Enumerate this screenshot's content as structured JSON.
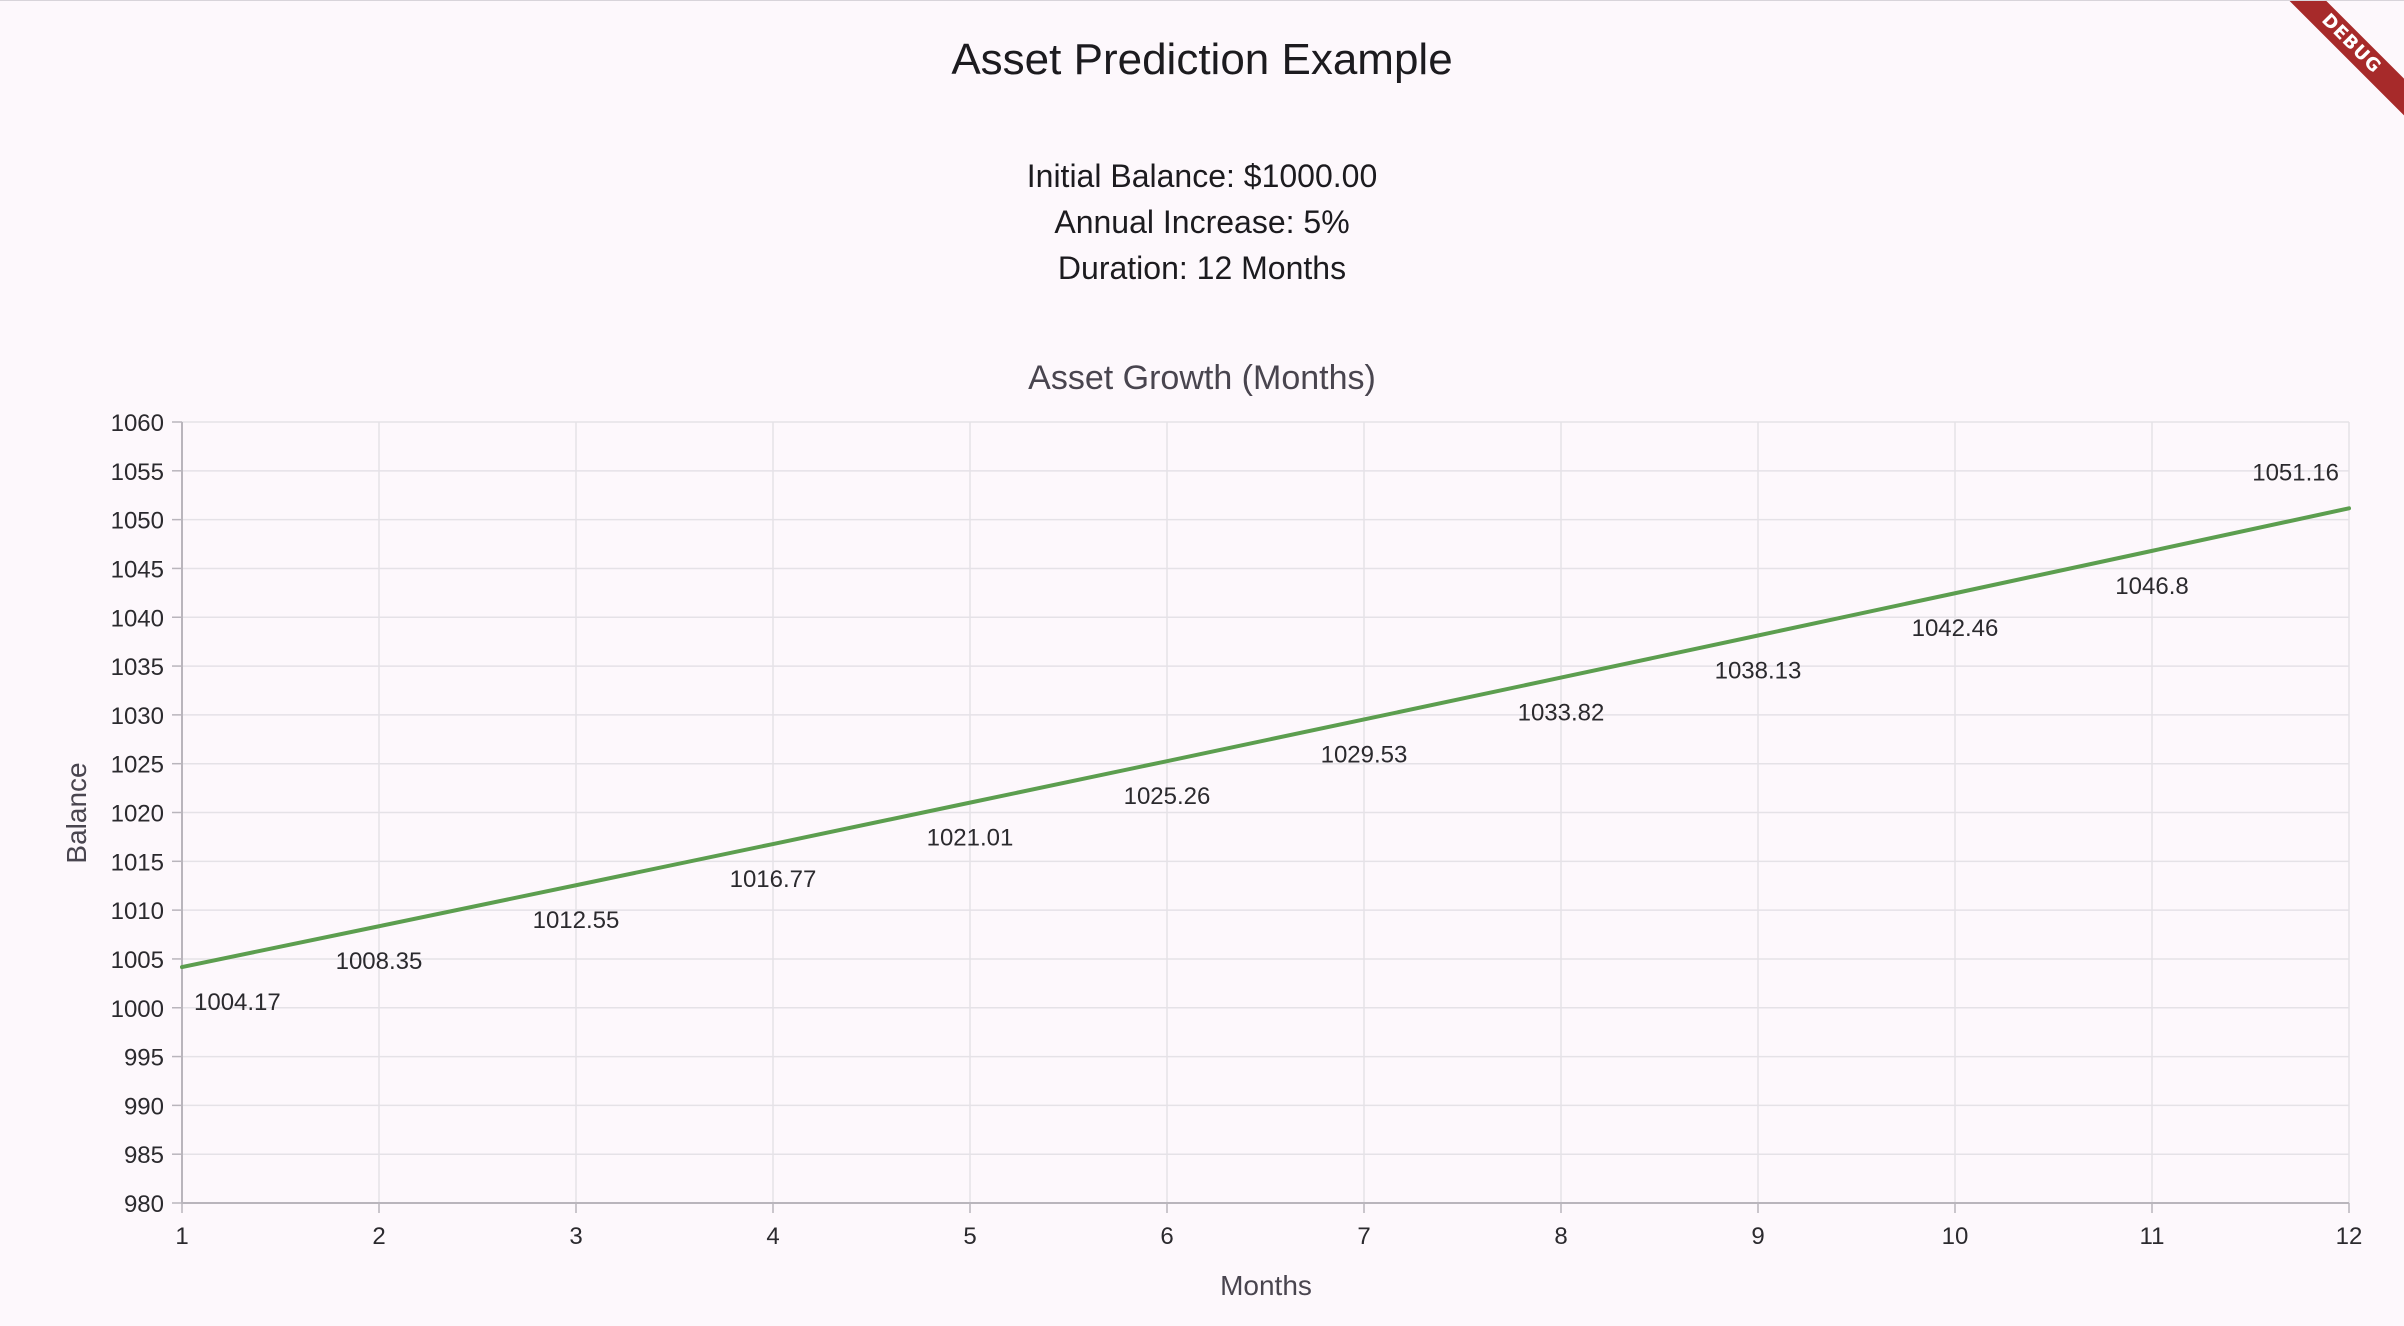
{
  "app": {
    "title": "Asset Prediction Example",
    "debug_label": "DEBUG"
  },
  "info": {
    "initial_balance": "Initial Balance: $1000.00",
    "annual_increase": "Annual Increase: 5%",
    "duration": "Duration: 12 Months"
  },
  "colors": {
    "line": "#5c9e4f",
    "grid": "#e5e2e7",
    "axis": "#b9b5bc",
    "tick_text": "#2b2a2e",
    "title_text": "#49454f",
    "debug_banner": "#a72a2a"
  },
  "chart_data": {
    "type": "line",
    "title": "Asset Growth (Months)",
    "xlabel": "Months",
    "ylabel": "Balance",
    "x": [
      1,
      2,
      3,
      4,
      5,
      6,
      7,
      8,
      9,
      10,
      11,
      12
    ],
    "xticks": [
      "1",
      "2",
      "3",
      "4",
      "5",
      "6",
      "7",
      "8",
      "9",
      "10",
      "11",
      "12"
    ],
    "yticks": [
      "980",
      "985",
      "990",
      "995",
      "1000",
      "1005",
      "1010",
      "1015",
      "1020",
      "1025",
      "1030",
      "1035",
      "1040",
      "1045",
      "1050",
      "1055",
      "1060"
    ],
    "xlim": [
      1,
      12
    ],
    "ylim": [
      980,
      1060
    ],
    "grid": true,
    "legend": "none",
    "series": [
      {
        "values": [
          1004.17,
          1008.35,
          1012.55,
          1016.77,
          1021.01,
          1025.26,
          1029.53,
          1033.82,
          1038.13,
          1042.46,
          1046.8,
          1051.16
        ],
        "labels": [
          "1004.17",
          "1008.35",
          "1012.55",
          "1016.77",
          "1021.01",
          "1025.26",
          "1029.53",
          "1033.82",
          "1038.13",
          "1042.46",
          "1046.8",
          "1051.16"
        ]
      }
    ]
  }
}
